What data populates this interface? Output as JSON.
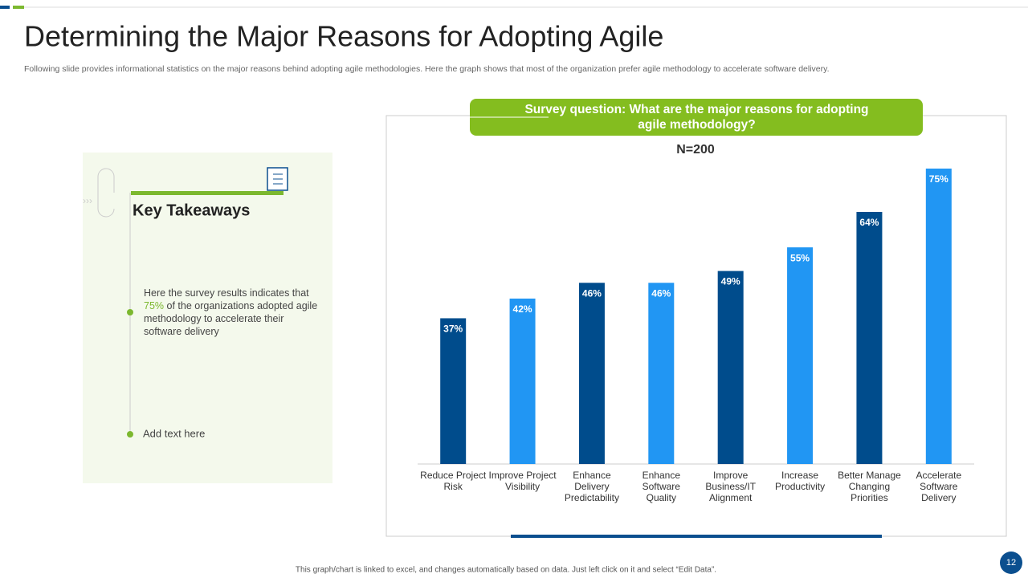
{
  "title": "Determining the Major Reasons for Adopting Agile",
  "subtitle": "Following slide provides informational statistics on the major reasons behind adopting agile methodologies. Here the graph shows that most of the organization prefer agile methodology to accelerate software delivery.",
  "key_takeaways": {
    "title": "Key Takeaways",
    "item_1": {
      "before": "Here the survey results indicates that",
      "highlight": "75%",
      "after": "of the organizations adopted agile methodology to accelerate their software delivery"
    },
    "item_2": "Add text here"
  },
  "chart_data": {
    "type": "bar",
    "title": "Survey question: What are the major reasons for adopting agile methodology?",
    "subtitle": "N=200",
    "categories": [
      "Reduce Project Risk",
      "Improve Project Visibility",
      "Enhance Delivery Predictability",
      "Enhance Software Quality",
      "Improve Business/IT Alignment",
      "Increase Productivity",
      "Better Manage Changing Priorities",
      "Accelerate Software Delivery"
    ],
    "values": [
      37,
      42,
      46,
      46,
      49,
      55,
      64,
      75
    ],
    "value_labels": [
      "37%",
      "42%",
      "46%",
      "46%",
      "49%",
      "55%",
      "64%",
      "75%"
    ],
    "colors": [
      "#004c8c",
      "#2196f3",
      "#004c8c",
      "#2196f3",
      "#004c8c",
      "#2196f3",
      "#004c8c",
      "#2196f3"
    ],
    "ylim": [
      0,
      75
    ]
  },
  "footer_note": "This graph/chart is linked to excel, and changes automatically based on data. Just left click on it and select “Edit Data”.",
  "page_number": "12"
}
